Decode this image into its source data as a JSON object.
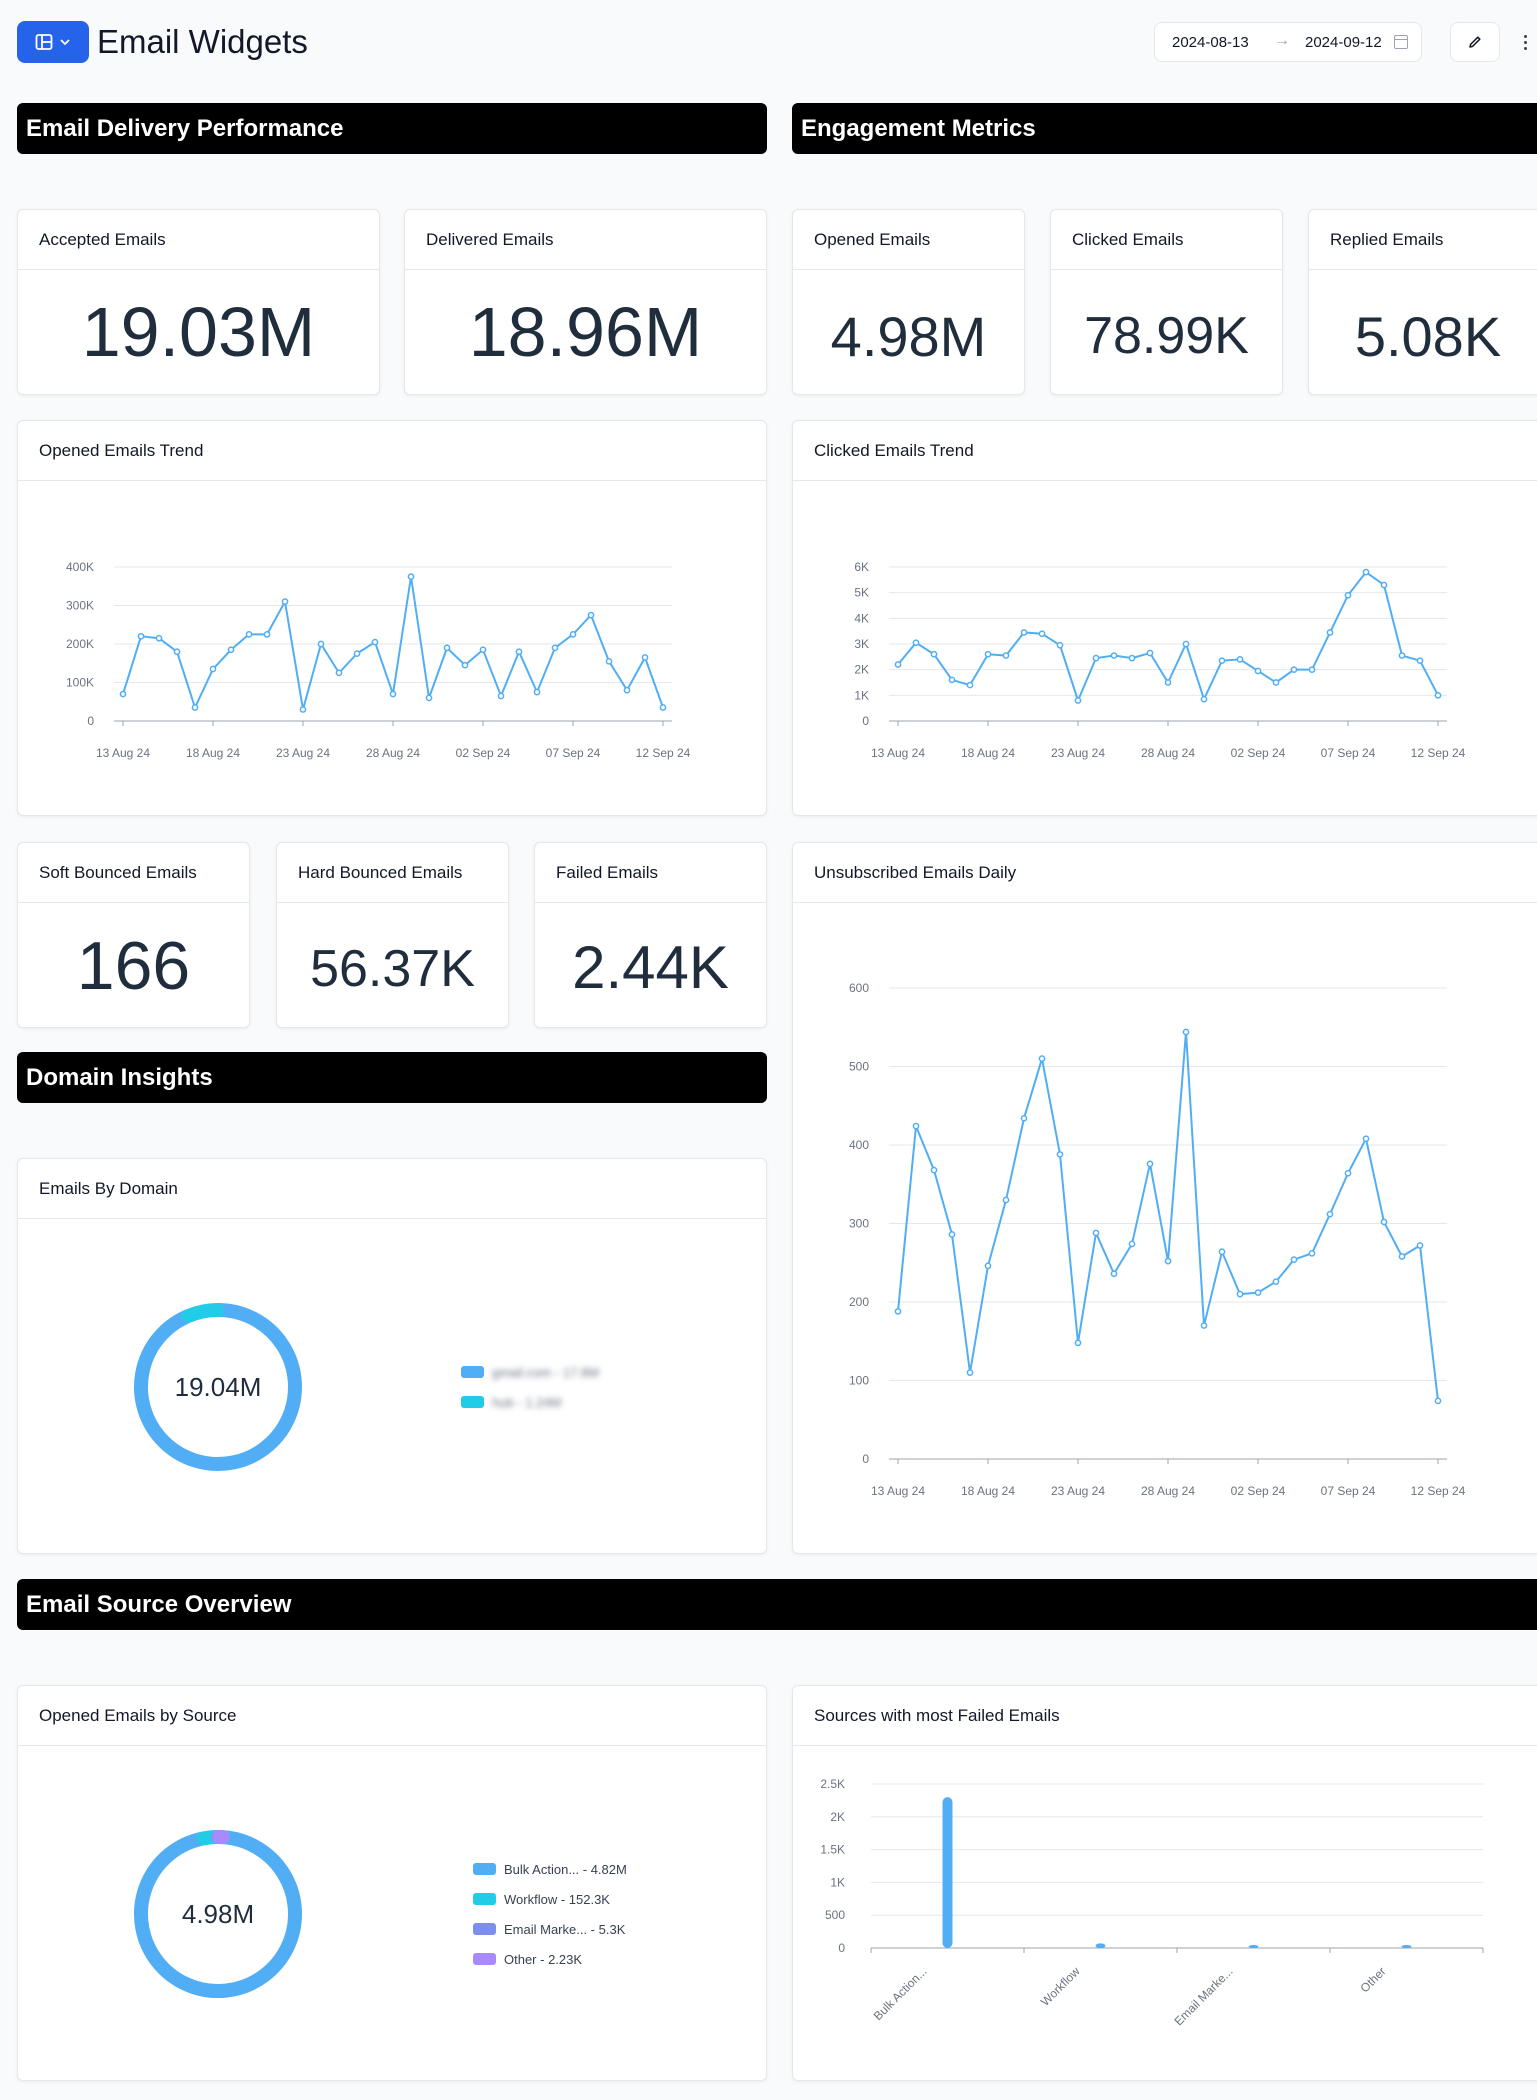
{
  "header": {
    "title": "Email Widgets",
    "date_start": "2024-08-13",
    "date_end": "2024-09-12"
  },
  "sections": {
    "delivery": "Email Delivery Performance",
    "engagement": "Engagement Metrics",
    "domain": "Domain Insights",
    "source": "Email Source Overview"
  },
  "kpis": {
    "accepted": {
      "label": "Accepted Emails",
      "value": "19.03M"
    },
    "delivered": {
      "label": "Delivered Emails",
      "value": "18.96M"
    },
    "opened": {
      "label": "Opened Emails",
      "value": "4.98M"
    },
    "clicked": {
      "label": "Clicked Emails",
      "value": "78.99K"
    },
    "replied": {
      "label": "Replied Emails",
      "value": "5.08K"
    },
    "soft_bounced": {
      "label": "Soft Bounced Emails",
      "value": "166"
    },
    "hard_bounced": {
      "label": "Hard Bounced Emails",
      "value": "56.37K"
    },
    "failed": {
      "label": "Failed Emails",
      "value": "2.44K"
    }
  },
  "colors": {
    "line": "#51aef5",
    "cyan": "#22cce6",
    "indigo": "#7c8ef0",
    "purple": "#a78bfa",
    "grid": "#e5e7eb",
    "axis": "#6b7280"
  },
  "chart_data": [
    {
      "id": "opened_trend",
      "type": "line",
      "title": "Opened Emails Trend",
      "x_ticks": [
        "13 Aug 24",
        "18 Aug 24",
        "23 Aug 24",
        "28 Aug 24",
        "02 Sep 24",
        "07 Sep 24",
        "12 Sep 24"
      ],
      "y_ticks": [
        "0",
        "100K",
        "200K",
        "300K",
        "400K"
      ],
      "ylim": [
        0,
        400000
      ],
      "values": [
        70000,
        220000,
        215000,
        180000,
        35000,
        135000,
        185000,
        225000,
        225000,
        310000,
        30000,
        200000,
        125000,
        175000,
        205000,
        70000,
        375000,
        60000,
        190000,
        145000,
        185000,
        65000,
        180000,
        75000,
        190000,
        225000,
        275000,
        155000,
        80000,
        165000,
        35000
      ]
    },
    {
      "id": "clicked_trend",
      "type": "line",
      "title": "Clicked Emails Trend",
      "x_ticks": [
        "13 Aug 24",
        "18 Aug 24",
        "23 Aug 24",
        "28 Aug 24",
        "02 Sep 24",
        "07 Sep 24",
        "12 Sep 24"
      ],
      "y_ticks": [
        "0",
        "1K",
        "2K",
        "3K",
        "4K",
        "5K",
        "6K"
      ],
      "ylim": [
        0,
        6000
      ],
      "values": [
        2200,
        3050,
        2600,
        1600,
        1400,
        2600,
        2550,
        3450,
        3400,
        2950,
        800,
        2450,
        2550,
        2450,
        2650,
        1500,
        3000,
        850,
        2350,
        2400,
        1950,
        1500,
        2000,
        2000,
        3450,
        4900,
        5800,
        5300,
        2550,
        2350,
        1000
      ]
    },
    {
      "id": "unsubscribed_daily",
      "type": "line",
      "title": "Unsubscribed Emails Daily",
      "x_ticks": [
        "13 Aug 24",
        "18 Aug 24",
        "23 Aug 24",
        "28 Aug 24",
        "02 Sep 24",
        "07 Sep 24",
        "12 Sep 24"
      ],
      "y_ticks": [
        "0",
        "100",
        "200",
        "300",
        "400",
        "500",
        "600"
      ],
      "ylim": [
        0,
        600
      ],
      "values": [
        188,
        424,
        368,
        286,
        110,
        246,
        330,
        434,
        510,
        388,
        148,
        288,
        236,
        274,
        376,
        252,
        544,
        170,
        264,
        210,
        212,
        226,
        254,
        262,
        312,
        364,
        408,
        302,
        258,
        272,
        74
      ]
    },
    {
      "id": "emails_by_domain",
      "type": "pie",
      "title": "Emails By Domain",
      "center_label": "19.04M",
      "slices": [
        {
          "name": "gmail.com - 17.8M",
          "value": 17.8,
          "color": "#51aef5"
        },
        {
          "name": "hub - 1.24M",
          "value": 1.24,
          "color": "#22cce6"
        }
      ]
    },
    {
      "id": "opened_by_source",
      "type": "pie",
      "title": "Opened Emails by Source",
      "center_label": "4.98M",
      "slices": [
        {
          "name": "Bulk Action... - 4.82M",
          "value": 4820,
          "color": "#51aef5"
        },
        {
          "name": "Workflow - 152.3K",
          "value": 152.3,
          "color": "#22cce6"
        },
        {
          "name": "Email Marke... - 5.3K",
          "value": 5.3,
          "color": "#7c8ef0"
        },
        {
          "name": "Other - 2.23K",
          "value": 2.23,
          "color": "#a78bfa"
        }
      ]
    },
    {
      "id": "failed_by_source",
      "type": "bar",
      "title": "Sources with most Failed Emails",
      "categories": [
        "Bulk Action...",
        "Workflow",
        "Email Marke...",
        "Other"
      ],
      "values": [
        2300,
        70,
        5,
        3
      ],
      "y_ticks": [
        "0",
        "500",
        "1K",
        "1.5K",
        "2K",
        "2.5K"
      ],
      "ylim": [
        0,
        2500
      ]
    }
  ]
}
